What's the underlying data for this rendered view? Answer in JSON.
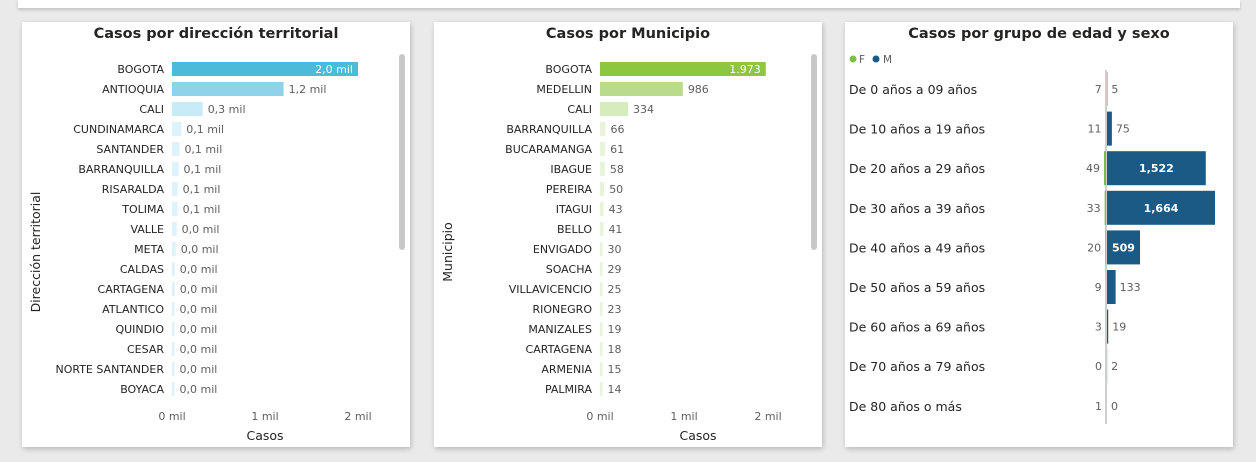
{
  "colors": {
    "territorial": "#4cbbd9",
    "municipio": "#8dc63f",
    "female": "#7ac143",
    "male": "#1a5a84"
  },
  "chart_data": [
    {
      "type": "bar",
      "orientation": "horizontal",
      "title": "Casos por dirección territorial",
      "xlabel": "Casos",
      "ylabel": "Dirección territorial",
      "xticks": [
        "0 mil",
        "1 mil",
        "2 mil"
      ],
      "xlim": [
        0,
        2
      ],
      "categories": [
        "BOGOTA",
        "ANTIOQUIA",
        "CALI",
        "CUNDINAMARCA",
        "SANTANDER",
        "BARRANQUILLA",
        "RISARALDA",
        "TOLIMA",
        "VALLE",
        "META",
        "CALDAS",
        "CARTAGENA",
        "ATLANTICO",
        "QUINDIO",
        "CESAR",
        "NORTE SANTANDER",
        "BOYACA"
      ],
      "values": [
        2.0,
        1.2,
        0.33,
        0.1,
        0.08,
        0.07,
        0.06,
        0.06,
        0.05,
        0.04,
        0.03,
        0.03,
        0.02,
        0.02,
        0.02,
        0.02,
        0.01
      ],
      "labels": [
        "2,0 mil",
        "1,2 mil",
        "0,3 mil",
        "0,1 mil",
        "0,1 mil",
        "0,1 mil",
        "0,1 mil",
        "0,1 mil",
        "0,0 mil",
        "0,0 mil",
        "0,0 mil",
        "0,0 mil",
        "0,0 mil",
        "0,0 mil",
        "0,0 mil",
        "0,0 mil",
        "0,0 mil"
      ]
    },
    {
      "type": "bar",
      "orientation": "horizontal",
      "title": "Casos por Municipio",
      "xlabel": "Casos",
      "ylabel": "Municipio",
      "xticks": [
        "0 mil",
        "1 mil",
        "2 mil"
      ],
      "xlim": [
        0,
        2000
      ],
      "categories": [
        "BOGOTA",
        "MEDELLIN",
        "CALI",
        "BARRANQUILLA",
        "BUCARAMANGA",
        "IBAGUE",
        "PEREIRA",
        "ITAGUI",
        "BELLO",
        "ENVIGADO",
        "SOACHA",
        "VILLAVICENCIO",
        "RIONEGRO",
        "MANIZALES",
        "CARTAGENA",
        "ARMENIA",
        "PALMIRA"
      ],
      "values": [
        1973,
        986,
        334,
        66,
        61,
        58,
        50,
        43,
        41,
        30,
        29,
        25,
        23,
        19,
        18,
        15,
        14
      ],
      "labels": [
        "1.973",
        "986",
        "334",
        "66",
        "61",
        "58",
        "50",
        "43",
        "41",
        "30",
        "29",
        "25",
        "23",
        "19",
        "18",
        "15",
        "14"
      ]
    },
    {
      "type": "bar",
      "orientation": "horizontal",
      "title": "Casos por grupo de edad y sexo",
      "legend": [
        "F",
        "M"
      ],
      "legend_position": "top-left",
      "categories": [
        "De 0 años a 09 años",
        "De 10 años a 19 años",
        "De 20 años a 29 años",
        "De 30 años a 39 años",
        "De 40 años a 49 años",
        "De 50 años a 59 años",
        "De 60 años a 69 años",
        "De 70 años a 79 años",
        "De 80 años o más"
      ],
      "series": [
        {
          "name": "F",
          "values": [
            7,
            11,
            49,
            33,
            20,
            9,
            3,
            0,
            1
          ],
          "labels": [
            "7",
            "11",
            "49",
            "33",
            "20",
            "9",
            "3",
            "0",
            "1"
          ]
        },
        {
          "name": "M",
          "values": [
            5,
            75,
            1522,
            1664,
            509,
            133,
            19,
            2,
            0
          ],
          "labels": [
            "5",
            "75",
            "1,522",
            "1,664",
            "509",
            "133",
            "19",
            "2",
            "0"
          ]
        }
      ]
    }
  ]
}
